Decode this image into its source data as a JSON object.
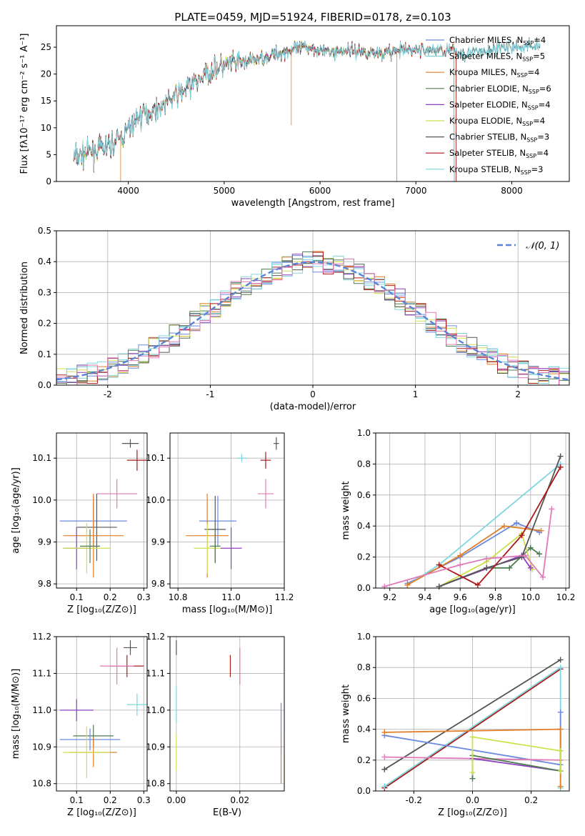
{
  "figure_title": "PLATE=0459, MJD=51924, FIBERID=0178, z=0.103",
  "colors": {
    "Chabrier MILES": "#6c89e0",
    "Salpeter MILES": "#7fd6d8",
    "Kroupa MILES": "#e07e2a",
    "Chabrier ELODIE": "#4e7c4e",
    "Salpeter ELODIE": "#8b3fbf",
    "Kroupa ELODIE": "#cfe04a",
    "Chabrier STELIB": "#555555",
    "Salpeter STELIB": "#aa1a1a",
    "Kroupa STELIB": "#7fd6e0",
    "extra_pink": "#e07ab8",
    "gauss": "#5b84d8",
    "grid": "#b0b0b0"
  },
  "chart_data": [
    {
      "id": "spectrum",
      "type": "line",
      "title": "PLATE=0459, MJD=51924, FIBERID=0178, z=0.103",
      "xlabel": "wavelength [Angstrom, rest frame]",
      "ylabel": "Flux [fλ10⁻¹⁷ erg cm⁻² s⁻¹ A⁻¹]",
      "xlim": [
        3250,
        8600
      ],
      "ylim": [
        0,
        29
      ],
      "xticks": [
        4000,
        5000,
        6000,
        7000,
        8000
      ],
      "yticks": [
        0,
        5,
        10,
        15,
        20,
        25
      ],
      "grid": false,
      "legend_position": "top-right",
      "series": [
        {
          "name": "Chabrier MILES, N_SSP=4"
        },
        {
          "name": "Salpeter MILES, N_SSP=5"
        },
        {
          "name": "Kroupa MILES, N_SSP=4"
        },
        {
          "name": "Chabrier ELODIE, N_SSP=6"
        },
        {
          "name": "Salpeter ELODIE, N_SSP=4"
        },
        {
          "name": "Kroupa ELODIE, N_SSP=4"
        },
        {
          "name": "Chabrier STELIB, N_SSP=3"
        },
        {
          "name": "Salpeter STELIB, N_SSP=4"
        },
        {
          "name": "Kroupa STELIB, N_SSP=3"
        }
      ],
      "legend_labels": [
        "Chabrier MILES, N",
        "Salpeter MILES, N",
        "Kroupa MILES, N",
        "Chabrier ELODIE, N",
        "Salpeter ELODIE, N",
        "Kroupa ELODIE, N",
        "Chabrier STELIB, N",
        "Salpeter STELIB, N",
        "Kroupa STELIB, N"
      ],
      "legend_nssp": [
        "=4",
        "=5",
        "=4",
        "=6",
        "=4",
        "=4",
        "=3",
        "=4",
        "=3"
      ],
      "continuum": {
        "x": [
          3450,
          3600,
          3800,
          3950,
          4100,
          4300,
          4500,
          4700,
          4900,
          5100,
          5300,
          5500,
          5700,
          5900,
          6100,
          6300,
          6500,
          6700,
          6900,
          7100,
          7300,
          7500,
          7700,
          7900,
          8100,
          8300
        ],
        "y": [
          4.5,
          5.5,
          6.5,
          8.5,
          12,
          13.5,
          16,
          18.5,
          21,
          22,
          22.5,
          23.5,
          24.5,
          25,
          24,
          24.5,
          24,
          24,
          24.5,
          24.5,
          24.5,
          24,
          24,
          25,
          25,
          25.5
        ]
      }
    },
    {
      "id": "residuals",
      "type": "line",
      "xlabel": "(data-model)/error",
      "ylabel": "Normed distribution",
      "xlim": [
        -2.5,
        2.5
      ],
      "ylim": [
        0,
        0.5
      ],
      "xticks": [
        -2,
        -1,
        0,
        1,
        2
      ],
      "yticks": [
        0.0,
        0.1,
        0.2,
        0.3,
        0.4,
        0.5
      ],
      "grid": true,
      "legend_position": "top-right",
      "gauss_label": "𝒩(0, 1)"
    },
    {
      "id": "age_vs_Z",
      "type": "scatter",
      "xlabel": "Z [log₁₀(Z/Z⊙)]",
      "ylabel": "age  [log₁₀(age/yr)]",
      "xlim": [
        0.04,
        0.31
      ],
      "ylim": [
        9.79,
        10.16
      ],
      "xticks": [
        0.1,
        0.2,
        0.3
      ],
      "yticks": [
        9.8,
        9.9,
        10.0,
        10.1
      ],
      "grid": true,
      "points": [
        {
          "x": 0.26,
          "y": 10.135,
          "xerr": 0.025,
          "yerr": 0.01,
          "c": "#555555"
        },
        {
          "x": 0.28,
          "y": 10.095,
          "xerr": 0.03,
          "yerr": 0.025,
          "c": "#aa1a1a"
        },
        {
          "x": 0.22,
          "y": 10.015,
          "xerr": 0.06,
          "yerr": 0.035,
          "c": "#e07ab8"
        },
        {
          "x": 0.15,
          "y": 9.95,
          "xerr": 0.1,
          "yerr": 0.06,
          "c": "#6c89e0"
        },
        {
          "x": 0.16,
          "y": 9.935,
          "xerr": 0.06,
          "yerr": 0.08,
          "c": "#555555"
        },
        {
          "x": 0.15,
          "y": 9.915,
          "xerr": 0.09,
          "yerr": 0.1,
          "c": "#e07e2a"
        },
        {
          "x": 0.1,
          "y": 9.885,
          "xerr": 0.04,
          "yerr": 0.05,
          "c": "#8b3fbf"
        },
        {
          "x": 0.13,
          "y": 9.885,
          "xerr": 0.07,
          "yerr": 0.06,
          "c": "#cfe04a"
        },
        {
          "x": 0.14,
          "y": 9.89,
          "xerr": 0.03,
          "yerr": 0.04,
          "c": "#4e7c4e"
        }
      ]
    },
    {
      "id": "age_vs_mass",
      "type": "scatter",
      "xlabel": "mass [log₁₀(M/M⊙)]",
      "ylabel": "",
      "xlim": [
        10.77,
        11.2
      ],
      "ylim": [
        9.79,
        10.16
      ],
      "xticks": [
        10.8,
        11.0,
        11.2
      ],
      "yticks": [
        9.8,
        9.9,
        10.0,
        10.1
      ],
      "grid": true,
      "points": [
        {
          "x": 11.17,
          "y": 10.135,
          "xerr": 0.01,
          "yerr": 0.015,
          "c": "#555555"
        },
        {
          "x": 11.04,
          "y": 10.1,
          "xerr": 0.02,
          "yerr": 0.01,
          "c": "#7fd6e0"
        },
        {
          "x": 11.13,
          "y": 10.095,
          "xerr": 0.02,
          "yerr": 0.02,
          "c": "#aa1a1a"
        },
        {
          "x": 11.13,
          "y": 10.015,
          "xerr": 0.03,
          "yerr": 0.035,
          "c": "#e07ab8"
        },
        {
          "x": 10.95,
          "y": 9.95,
          "xerr": 0.07,
          "yerr": 0.06,
          "c": "#6c89e0"
        },
        {
          "x": 10.94,
          "y": 9.93,
          "xerr": 0.04,
          "yerr": 0.08,
          "c": "#555555"
        },
        {
          "x": 10.91,
          "y": 9.915,
          "xerr": 0.08,
          "yerr": 0.1,
          "c": "#e07e2a"
        },
        {
          "x": 11.0,
          "y": 9.885,
          "xerr": 0.04,
          "yerr": 0.05,
          "c": "#8b3fbf"
        },
        {
          "x": 10.91,
          "y": 9.885,
          "xerr": 0.05,
          "yerr": 0.06,
          "c": "#cfe04a"
        },
        {
          "x": 10.94,
          "y": 9.89,
          "xerr": 0.02,
          "yerr": 0.04,
          "c": "#4e7c4e"
        }
      ]
    },
    {
      "id": "weight_vs_age",
      "type": "line",
      "xlabel": "age  [log₁₀(age/yr)]",
      "ylabel": "mass weight",
      "xlim": [
        9.12,
        10.22
      ],
      "ylim": [
        0,
        1.0
      ],
      "xticks": [
        9.2,
        9.4,
        9.6,
        9.8,
        10.0,
        10.2
      ],
      "yticks": [
        0.0,
        0.2,
        0.4,
        0.6,
        0.8,
        1.0
      ],
      "grid": true,
      "series": [
        {
          "c": "#6c89e0",
          "x": [
            9.3,
            9.6,
            9.92,
            10.05
          ],
          "y": [
            0.03,
            0.2,
            0.42,
            0.36
          ]
        },
        {
          "c": "#7fd6e0",
          "x": [
            9.3,
            9.48,
            10.17
          ],
          "y": [
            0.02,
            0.15,
            0.8
          ]
        },
        {
          "c": "#e07e2a",
          "x": [
            9.3,
            9.6,
            9.85,
            10.06
          ],
          "y": [
            0.02,
            0.21,
            0.4,
            0.37
          ]
        },
        {
          "c": "#4e7c4e",
          "x": [
            9.48,
            9.75,
            9.88,
            10.0,
            10.05
          ],
          "y": [
            0.01,
            0.13,
            0.13,
            0.26,
            0.22
          ]
        },
        {
          "c": "#cfe04a",
          "x": [
            9.48,
            9.75,
            9.95,
            10.01
          ],
          "y": [
            0.01,
            0.17,
            0.35,
            0.12
          ]
        },
        {
          "c": "#8b3fbf",
          "x": [
            9.48,
            9.95,
            10.0
          ],
          "y": [
            0.01,
            0.21,
            0.13
          ]
        },
        {
          "c": "#555555",
          "x": [
            9.48,
            9.75,
            9.95,
            10.17
          ],
          "y": [
            0.01,
            0.13,
            0.2,
            0.85
          ]
        },
        {
          "c": "#aa1a1a",
          "x": [
            9.48,
            9.7,
            9.95,
            10.17
          ],
          "y": [
            0.15,
            0.02,
            0.34,
            0.78
          ]
        },
        {
          "c": "#e07ab8",
          "x": [
            9.17,
            9.6,
            9.75,
            9.97,
            10.07,
            10.12
          ],
          "y": [
            0.01,
            0.15,
            0.19,
            0.21,
            0.07,
            0.51
          ]
        }
      ]
    },
    {
      "id": "mass_vs_Z",
      "type": "scatter",
      "xlabel": "Z [log₁₀(Z/Z⊙)]",
      "ylabel": "mass [log₁₀(M/M⊙)]",
      "xlim": [
        0.04,
        0.31
      ],
      "ylim": [
        10.78,
        11.2
      ],
      "xticks": [
        0.1,
        0.2,
        0.3
      ],
      "yticks": [
        10.8,
        10.9,
        11.0,
        11.1,
        11.2
      ],
      "grid": true,
      "points": [
        {
          "x": 0.26,
          "y": 11.17,
          "xerr": 0.02,
          "yerr": 0.02,
          "c": "#555555"
        },
        {
          "x": 0.25,
          "y": 11.12,
          "xerr": 0.05,
          "yerr": 0.03,
          "c": "#aa1a1a"
        },
        {
          "x": 0.22,
          "y": 11.12,
          "xerr": 0.05,
          "yerr": 0.05,
          "c": "#e07ab8"
        },
        {
          "x": 0.28,
          "y": 11.015,
          "xerr": 0.03,
          "yerr": 0.03,
          "c": "#7fd6e0"
        },
        {
          "x": 0.1,
          "y": 11.0,
          "xerr": 0.05,
          "yerr": 0.03,
          "c": "#8b3fbf"
        },
        {
          "x": 0.15,
          "y": 10.93,
          "xerr": 0.06,
          "yerr": 0.03,
          "c": "#4e7c4e"
        },
        {
          "x": 0.14,
          "y": 10.92,
          "xerr": 0.09,
          "yerr": 0.03,
          "c": "#6c89e0"
        },
        {
          "x": 0.15,
          "y": 10.885,
          "xerr": 0.07,
          "yerr": 0.04,
          "c": "#e07e2a"
        },
        {
          "x": 0.13,
          "y": 10.885,
          "xerr": 0.07,
          "yerr": 0.07,
          "c": "#cfe04a"
        }
      ]
    },
    {
      "id": "mass_vs_ebv",
      "type": "scatter",
      "xlabel": "E(B-V)",
      "ylabel": "",
      "xlim": [
        -0.002,
        0.034
      ],
      "ylim": [
        10.78,
        11.2
      ],
      "xticks": [
        0.0,
        0.02
      ],
      "yticks": [
        10.8,
        10.9,
        11.0,
        11.1,
        11.2
      ],
      "grid": true,
      "points": [
        {
          "x": 0.0,
          "y": 11.17,
          "xerr": 0.0,
          "yerr": 0.02,
          "c": "#555555"
        },
        {
          "x": 0.017,
          "y": 11.12,
          "xerr": 0.0,
          "yerr": 0.03,
          "c": "#aa1a1a"
        },
        {
          "x": 0.02,
          "y": 11.12,
          "xerr": 0.0,
          "yerr": 0.05,
          "c": "#e07ab8"
        },
        {
          "x": 0.0,
          "y": 11.015,
          "xerr": 0.0,
          "yerr": 0.05,
          "c": "#7fd6e0"
        },
        {
          "x": 0.033,
          "y": 10.95,
          "xerr": 0.0,
          "yerr": 0.07,
          "c": "#6c89e0"
        },
        {
          "x": 0.033,
          "y": 10.87,
          "xerr": 0.0,
          "yerr": 0.07,
          "c": "#e07e2a"
        },
        {
          "x": 0.0,
          "y": 10.885,
          "xerr": 0.0,
          "yerr": 0.05,
          "c": "#cfe04a"
        }
      ]
    },
    {
      "id": "weight_vs_Z",
      "type": "line",
      "xlabel": "Z [log₁₀(Z/Z⊙)]",
      "ylabel": "mass weight",
      "xlim": [
        -0.33,
        0.33
      ],
      "ylim": [
        0,
        1.0
      ],
      "xticks": [
        -0.2,
        0.0,
        0.2
      ],
      "yticks": [
        0.0,
        0.2,
        0.4,
        0.6,
        0.8,
        1.0
      ],
      "grid": true,
      "series": [
        {
          "c": "#555555",
          "x": [
            -0.3,
            0.3
          ],
          "y": [
            0.14,
            0.85
          ]
        },
        {
          "c": "#aa1a1a",
          "x": [
            -0.3,
            0.3
          ],
          "y": [
            0.02,
            0.79
          ]
        },
        {
          "c": "#7fd6e0",
          "x": [
            -0.3,
            0.3,
            0.3
          ],
          "y": [
            0.03,
            0.8,
            0.02
          ]
        },
        {
          "c": "#6c89e0",
          "x": [
            -0.3,
            0.3,
            0.3
          ],
          "y": [
            0.36,
            0.17,
            0.51
          ]
        },
        {
          "c": "#e07e2a",
          "x": [
            -0.3,
            0.3,
            0.3
          ],
          "y": [
            0.38,
            0.4,
            0.03
          ]
        },
        {
          "c": "#e07ab8",
          "x": [
            -0.3,
            0.3
          ],
          "y": [
            0.22,
            0.2
          ]
        },
        {
          "c": "#8b3fbf",
          "x": [
            0.0,
            0.3
          ],
          "y": [
            0.21,
            0.13
          ]
        },
        {
          "c": "#4e7c4e",
          "x": [
            0.0,
            0.0,
            0.3,
            0.3
          ],
          "y": [
            0.08,
            0.23,
            0.13,
            0.26
          ]
        },
        {
          "c": "#cfe04a",
          "x": [
            0.0,
            0.0,
            0.3,
            0.3
          ],
          "y": [
            0.12,
            0.35,
            0.26,
            0.13
          ]
        }
      ]
    }
  ]
}
